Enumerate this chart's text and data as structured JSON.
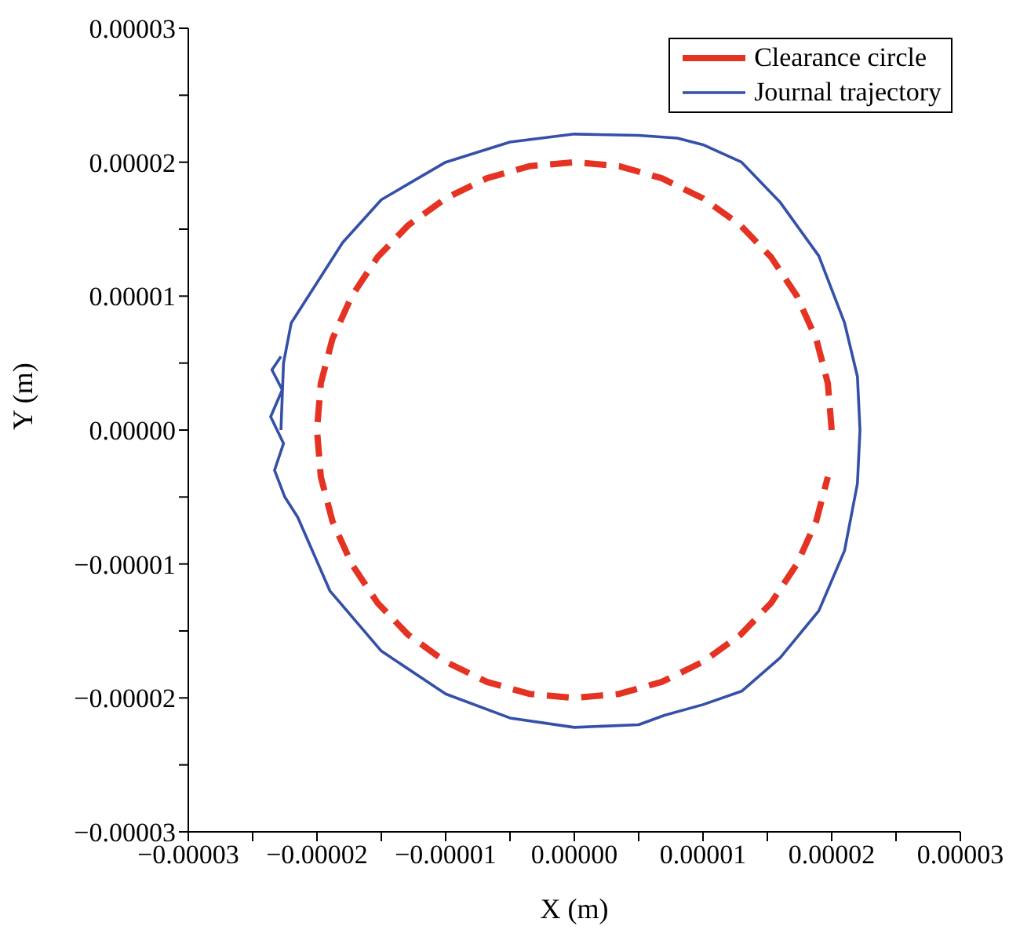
{
  "chart_data": {
    "type": "line",
    "xlabel": "X (m)",
    "ylabel": "Y (m)",
    "legend": "top right",
    "grid": false,
    "marker": "none",
    "xlim": [
      -3e-05,
      3e-05
    ],
    "ylim": [
      -3e-05,
      3e-05
    ],
    "xticks": [
      {
        "value": -3e-05,
        "label": "−0.00003"
      },
      {
        "value": -2.5e-05,
        "label": null
      },
      {
        "value": -2e-05,
        "label": "−0.00002"
      },
      {
        "value": -1.5e-05,
        "label": null
      },
      {
        "value": -1e-05,
        "label": "−0.00001"
      },
      {
        "value": -5e-06,
        "label": null
      },
      {
        "value": 0,
        "label": "0.00000"
      },
      {
        "value": 5e-06,
        "label": null
      },
      {
        "value": 1e-05,
        "label": "0.00001"
      },
      {
        "value": 1.5e-05,
        "label": null
      },
      {
        "value": 2e-05,
        "label": "0.00002"
      },
      {
        "value": 2.5e-05,
        "label": null
      },
      {
        "value": 3e-05,
        "label": "0.00003"
      }
    ],
    "yticks": [
      {
        "value": -3e-05,
        "label": "−0.00003"
      },
      {
        "value": -2.5e-05,
        "label": null
      },
      {
        "value": -2e-05,
        "label": "−0.00002"
      },
      {
        "value": -1.5e-05,
        "label": null
      },
      {
        "value": -1e-05,
        "label": "−0.00001"
      },
      {
        "value": -5e-06,
        "label": null
      },
      {
        "value": 0,
        "label": "0.00000"
      },
      {
        "value": 5e-06,
        "label": null
      },
      {
        "value": 1e-05,
        "label": "0.00001"
      },
      {
        "value": 1.5e-05,
        "label": null
      },
      {
        "value": 2e-05,
        "label": "0.00002"
      },
      {
        "value": 2.5e-05,
        "label": null
      },
      {
        "value": 3e-05,
        "label": "0.00003"
      }
    ],
    "series": [
      {
        "name": "Clearance circle",
        "color": "#e53323",
        "line_style": "dashed",
        "x": [
          2e-05,
          1.97e-05,
          1.88e-05,
          1.73e-05,
          1.53e-05,
          1.29e-05,
          1e-05,
          6.8e-06,
          3.5e-06,
          0,
          -3.5e-06,
          -6.8e-06,
          -1e-05,
          -1.29e-05,
          -1.53e-05,
          -1.73e-05,
          -1.88e-05,
          -1.97e-05,
          -2e-05,
          -1.97e-05,
          -1.88e-05,
          -1.73e-05,
          -1.53e-05,
          -1.29e-05,
          -1e-05,
          -6.8e-06,
          -3.5e-06,
          0,
          3.5e-06,
          6.8e-06,
          1e-05,
          1.29e-05,
          1.53e-05,
          1.73e-05,
          1.88e-05,
          1.97e-05
        ],
        "values": [
          0,
          3.5e-06,
          6.8e-06,
          1e-05,
          1.29e-05,
          1.53e-05,
          1.73e-05,
          1.88e-05,
          1.97e-05,
          2e-05,
          1.97e-05,
          1.88e-05,
          1.73e-05,
          1.53e-05,
          1.29e-05,
          1e-05,
          6.8e-06,
          3.5e-06,
          0,
          -3.5e-06,
          -6.8e-06,
          -1e-05,
          -1.29e-05,
          -1.53e-05,
          -1.73e-05,
          -1.88e-05,
          -1.97e-05,
          -2e-05,
          -1.97e-05,
          -1.88e-05,
          -1.73e-05,
          -1.53e-05,
          -1.29e-05,
          -1e-05,
          -6.8e-06,
          -3.5e-06
        ]
      },
      {
        "name": "Journal trajectory",
        "color": "#3450a8",
        "line_style": "solid",
        "x": [
          -2.28e-05,
          -2.26e-05,
          -2.2e-05,
          -2e-05,
          -1.8e-05,
          -1.5e-05,
          -1e-05,
          -5e-06,
          0,
          5e-06,
          8e-06,
          1e-05,
          1.3e-05,
          1.6e-05,
          1.9e-05,
          2.1e-05,
          2.2e-05,
          2.22e-05,
          2.2e-05,
          2.1e-05,
          1.9e-05,
          1.6e-05,
          1.3e-05,
          1e-05,
          7e-06,
          5e-06,
          0,
          -5e-06,
          -1e-05,
          -1.5e-05,
          -1.9e-05,
          -2.15e-05,
          -2.25e-05,
          -2.33e-05,
          -2.26e-05,
          -2.36e-05,
          -2.27e-05,
          -2.35e-05,
          -2.28e-05
        ],
        "values": [
          0,
          5e-06,
          8e-06,
          1.1e-05,
          1.4e-05,
          1.72e-05,
          2e-05,
          2.15e-05,
          2.21e-05,
          2.2e-05,
          2.18e-05,
          2.13e-05,
          2e-05,
          1.7e-05,
          1.3e-05,
          8e-06,
          4e-06,
          0,
          -4e-06,
          -9e-06,
          -1.35e-05,
          -1.7e-05,
          -1.95e-05,
          -2.05e-05,
          -2.13e-05,
          -2.2e-05,
          -2.22e-05,
          -2.15e-05,
          -1.97e-05,
          -1.65e-05,
          -1.2e-05,
          -6.5e-06,
          -5e-06,
          -3e-06,
          -1e-06,
          1e-06,
          3e-06,
          4.5e-06,
          5.5e-06
        ]
      }
    ]
  }
}
